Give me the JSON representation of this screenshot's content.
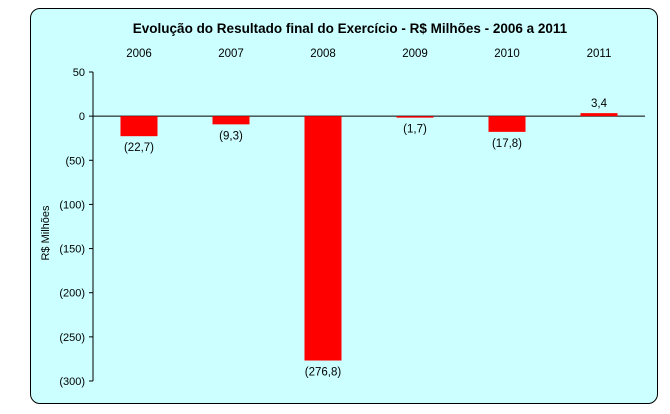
{
  "chart_data": {
    "type": "bar",
    "title": "Evolução do Resultado final do Exercício - R$ Milhões - 2006 a 2011",
    "ylabel": "R$ Milhões",
    "xlabel": "",
    "categories": [
      "2006",
      "2007",
      "2008",
      "2009",
      "2010",
      "2011"
    ],
    "values": [
      -22.7,
      -9.3,
      -276.8,
      -1.7,
      -17.8,
      3.4
    ],
    "data_labels": [
      "(22,7)",
      "(9,3)",
      "(276,8)",
      "(1,7)",
      "(17,8)",
      "3,4"
    ],
    "ylim": [
      -300,
      50
    ],
    "yticks": [
      50,
      0,
      -50,
      -100,
      -150,
      -200,
      -250,
      -300
    ],
    "ytick_labels": [
      "50",
      "0",
      "(50)",
      "(100)",
      "(150)",
      "(200)",
      "(250)",
      "(300)"
    ],
    "category_labels_position": "top",
    "grid": false,
    "legend": "none",
    "bar_color": "#ff0000",
    "background_color": "#ccffff"
  }
}
